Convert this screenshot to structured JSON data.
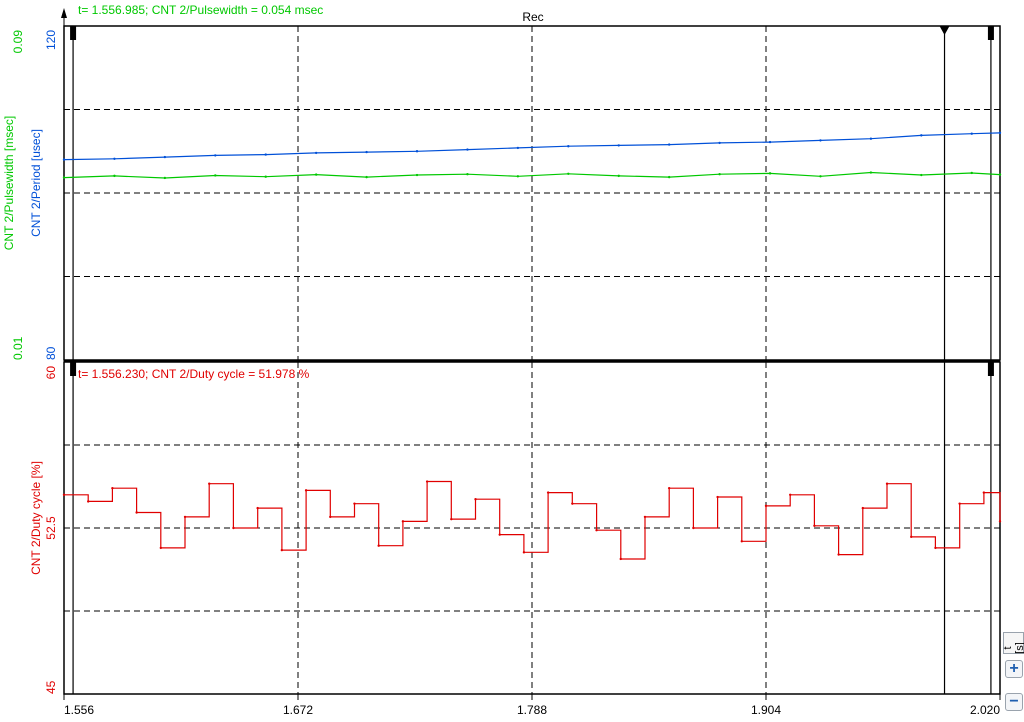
{
  "window": {
    "recording_label": "Rec",
    "time_unit": "t [s]"
  },
  "toolbar": {
    "zoom_in": "+",
    "zoom_out": "−"
  },
  "colors": {
    "pulsewidth": "#00c800",
    "period": "#0050d8",
    "duty": "#e00000",
    "grid": "#000000"
  },
  "chart_data": [
    {
      "type": "line",
      "title": "",
      "cursor_readout": "t= 1.556.985; CNT 2/Pulsewidth = 0.054 msec",
      "x": [
        1.556,
        1.581,
        1.606,
        1.631,
        1.656,
        1.681,
        1.706,
        1.731,
        1.756,
        1.781,
        1.806,
        1.831,
        1.856,
        1.881,
        1.906,
        1.931,
        1.956,
        1.981,
        2.006,
        2.02
      ],
      "x_ticks": [
        "1.556",
        "1.672",
        "1.788",
        "1.904",
        "2.020"
      ],
      "xlim": [
        1.556,
        2.02
      ],
      "axes": [
        {
          "label": "CNT 2/Pulsewidth [msec]",
          "ticks": [
            "0.09",
            "0.01"
          ],
          "range": [
            0.01,
            0.09
          ],
          "color": "#00c800"
        },
        {
          "label": "CNT 2/Period [usec]",
          "ticks": [
            "120",
            "80"
          ],
          "range": [
            80,
            120
          ],
          "color": "#0050d8"
        }
      ],
      "series": [
        {
          "name": "CNT 2/Pulsewidth",
          "axis": 0,
          "values": [
            0.0537,
            0.0541,
            0.0536,
            0.0542,
            0.0539,
            0.0544,
            0.0538,
            0.0543,
            0.0545,
            0.054,
            0.0546,
            0.0541,
            0.0538,
            0.0545,
            0.0547,
            0.054,
            0.0549,
            0.0543,
            0.0548,
            0.0544
          ]
        },
        {
          "name": "CNT 2/Period",
          "axis": 1,
          "values": [
            104.0,
            104.1,
            104.3,
            104.5,
            104.6,
            104.8,
            104.9,
            105.0,
            105.2,
            105.4,
            105.6,
            105.7,
            105.8,
            106.0,
            106.1,
            106.3,
            106.5,
            106.9,
            107.1,
            107.2
          ]
        }
      ],
      "grid": true
    },
    {
      "type": "line",
      "title": "",
      "cursor_readout": "t= 1.556.230; CNT 2/Duty cycle = 51.978 %",
      "x": [
        1.556,
        1.568,
        1.58,
        1.592,
        1.604,
        1.616,
        1.628,
        1.64,
        1.652,
        1.664,
        1.676,
        1.688,
        1.7,
        1.712,
        1.724,
        1.736,
        1.748,
        1.76,
        1.772,
        1.784,
        1.796,
        1.808,
        1.82,
        1.832,
        1.844,
        1.856,
        1.868,
        1.88,
        1.892,
        1.904,
        1.916,
        1.928,
        1.94,
        1.952,
        1.964,
        1.976,
        1.988,
        2.0,
        2.012,
        2.02
      ],
      "x_ticks": [
        "1.556",
        "1.672",
        "1.788",
        "1.904",
        "2.020"
      ],
      "xlim": [
        1.556,
        2.02
      ],
      "axes": [
        {
          "label": "CNT 2/Duty cycle [%]",
          "ticks": [
            "60",
            "52.5",
            "45"
          ],
          "range": [
            45,
            60
          ],
          "color": "#e00000"
        }
      ],
      "series": [
        {
          "name": "CNT 2/Duty cycle",
          "axis": 0,
          "values": [
            54.0,
            53.7,
            54.3,
            53.2,
            51.6,
            53.0,
            54.5,
            52.5,
            53.4,
            51.5,
            54.2,
            53.0,
            53.6,
            51.7,
            52.8,
            54.6,
            52.9,
            53.8,
            52.2,
            51.4,
            54.1,
            53.6,
            52.4,
            51.1,
            53.0,
            54.3,
            52.5,
            53.9,
            51.9,
            53.5,
            54.0,
            52.6,
            51.3,
            53.4,
            54.5,
            52.1,
            51.6,
            53.6,
            54.1,
            52.8
          ]
        }
      ],
      "grid": true
    }
  ]
}
